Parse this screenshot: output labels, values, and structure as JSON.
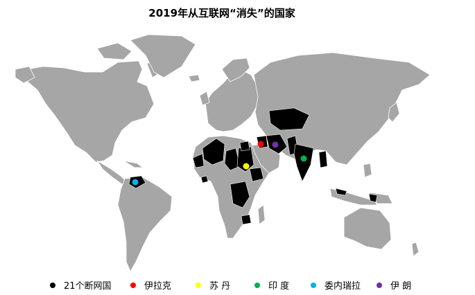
{
  "title": "2019年从互联网“消失”的国家",
  "colors": {
    "land": "#a6a6a6",
    "border": "#ffffff",
    "highlight": "#000000"
  },
  "legend": [
    {
      "label": "21个断网国",
      "color": "#000000"
    },
    {
      "label": "伊拉克",
      "color": "#ff0000"
    },
    {
      "label": "苏 丹",
      "color": "#ffff00"
    },
    {
      "label": "印 度",
      "color": "#00b050"
    },
    {
      "label": "委内瑞拉",
      "color": "#00b0f0"
    },
    {
      "label": "伊 朗",
      "color": "#7030a0"
    }
  ]
}
